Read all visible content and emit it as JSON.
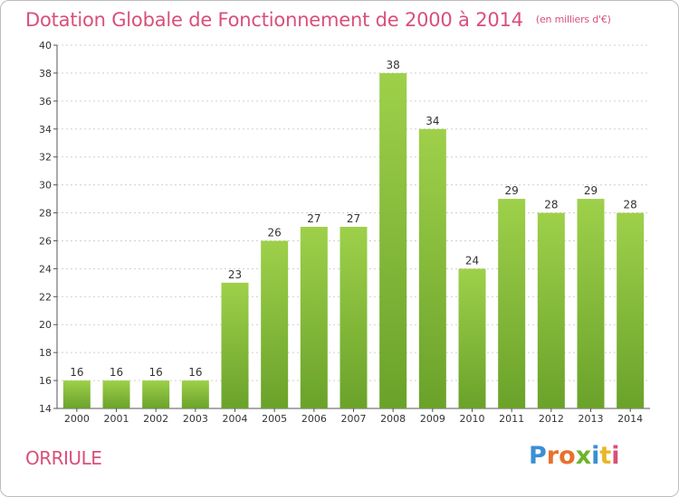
{
  "title": "Dotation Globale de Fonctionnement de 2000 à 2014",
  "subtitle": "(en milliers d'€)",
  "commune": "ORRIULE",
  "logo": {
    "letters": [
      "P",
      "r",
      "o",
      "x",
      "i",
      "t",
      "i"
    ],
    "colors": [
      "#3a8fd6",
      "#e8702a",
      "#e8702a",
      "#6bb52a",
      "#3a8fd6",
      "#e8b82a",
      "#d94f7a"
    ]
  },
  "colors": {
    "title": "#d94f7a",
    "bar_top": "#9ed04a",
    "bar_bottom": "#6aa22a",
    "grid": "#cfcfcf"
  },
  "chart_data": {
    "type": "bar",
    "title": "Dotation Globale de Fonctionnement de 2000 à 2014",
    "subtitle": "(en milliers d'€)",
    "categories": [
      "2000",
      "2001",
      "2002",
      "2003",
      "2004",
      "2005",
      "2006",
      "2007",
      "2008",
      "2009",
      "2010",
      "2011",
      "2012",
      "2013",
      "2014"
    ],
    "values": [
      16,
      16,
      16,
      16,
      23,
      26,
      27,
      27,
      38,
      34,
      24,
      29,
      28,
      29,
      28
    ],
    "ylim": [
      14,
      40
    ],
    "yticks": [
      14,
      16,
      18,
      20,
      22,
      24,
      26,
      28,
      30,
      32,
      34,
      36,
      38,
      40
    ],
    "grid": true,
    "xlabel": "",
    "ylabel": ""
  }
}
